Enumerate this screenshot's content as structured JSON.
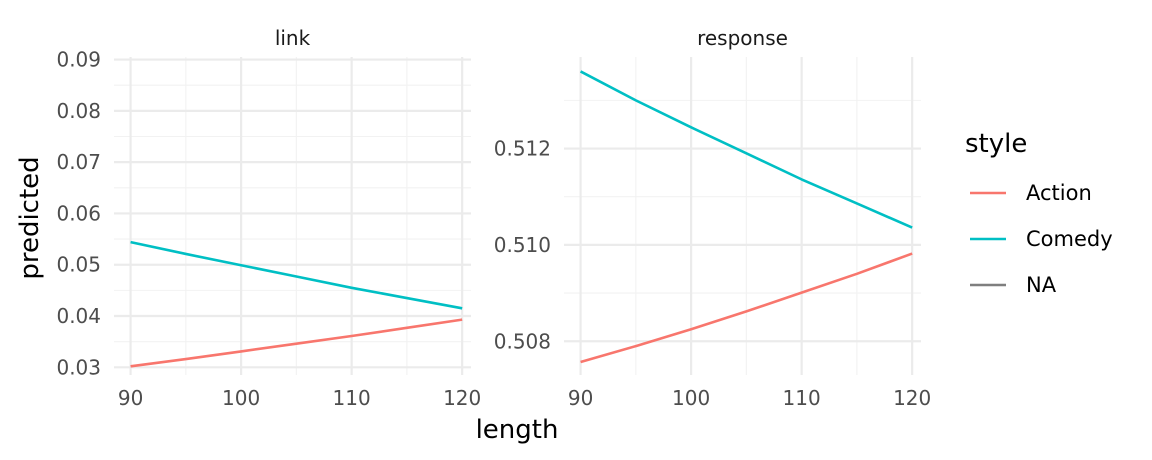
{
  "chart_data": {
    "type": "line",
    "xlabel": "length",
    "ylabel": "predicted",
    "legend": {
      "title": "style",
      "position": "right",
      "entries": [
        {
          "label": "Action",
          "color": "#F8766D"
        },
        {
          "label": "Comedy",
          "color": "#00BFC4"
        },
        {
          "label": "NA",
          "color": "#7F7F7F"
        }
      ]
    },
    "panels": [
      {
        "strip": "link",
        "xlim": [
          88.5,
          120.8
        ],
        "ylim": [
          0.0285,
          0.0905
        ],
        "x_ticks": [
          90,
          100,
          110,
          120
        ],
        "x_tick_labels": [
          "90",
          "100",
          "110",
          "120"
        ],
        "y_ticks": [
          0.03,
          0.04,
          0.05,
          0.06,
          0.07,
          0.08,
          0.09
        ],
        "y_tick_labels": [
          "0.03",
          "0.04",
          "0.05",
          "0.06",
          "0.07",
          "0.08",
          "0.09"
        ],
        "series": [
          {
            "name": "Action",
            "x": [
              90,
              95,
              100,
              105,
              110,
              115,
              120
            ],
            "y": [
              0.0302,
              0.0316,
              0.0331,
              0.0346,
              0.0361,
              0.0377,
              0.0393
            ]
          },
          {
            "name": "Comedy",
            "x": [
              90,
              95,
              100,
              105,
              110,
              115,
              120
            ],
            "y": [
              0.0544,
              0.0521,
              0.0499,
              0.0477,
              0.0455,
              0.0435,
              0.0415
            ]
          }
        ]
      },
      {
        "strip": "response",
        "xlim": [
          88.5,
          120.8
        ],
        "ylim": [
          0.5073,
          0.5139
        ],
        "x_ticks": [
          90,
          100,
          110,
          120
        ],
        "x_tick_labels": [
          "90",
          "100",
          "110",
          "120"
        ],
        "y_ticks": [
          0.508,
          0.51,
          0.512
        ],
        "y_tick_labels": [
          "0.508",
          "0.510",
          "0.512"
        ],
        "series": [
          {
            "name": "Action",
            "x": [
              90,
              95,
              100,
              105,
              110,
              115,
              120
            ],
            "y": [
              0.50757,
              0.5079,
              0.50825,
              0.50862,
              0.50901,
              0.5094,
              0.50982
            ]
          },
          {
            "name": "Comedy",
            "x": [
              90,
              95,
              100,
              105,
              110,
              115,
              120
            ],
            "y": [
              0.5136,
              0.513,
              0.51244,
              0.5119,
              0.51136,
              0.51086,
              0.51036
            ]
          }
        ]
      }
    ]
  }
}
